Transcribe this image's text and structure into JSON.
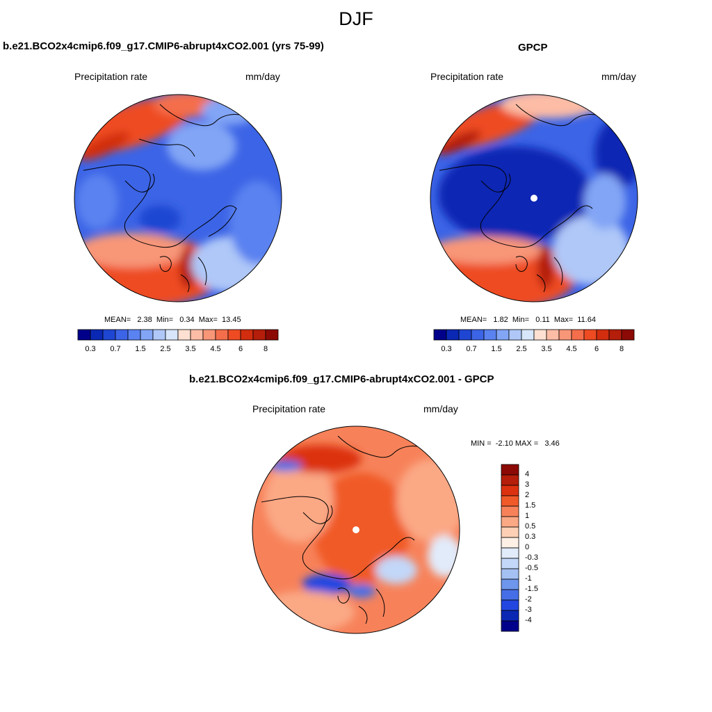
{
  "figure": {
    "title": "DJF",
    "panels": [
      {
        "id": "model",
        "title": "b.e21.BCO2x4cmip6.f09_g17.CMIP6-abrupt4xCO2.001 (yrs 75-99)",
        "left_label": "Precipitation rate",
        "right_label": "mm/day",
        "stats": "MEAN=   2.38  Min=   0.34  Max=  13.45",
        "mean": 2.38,
        "min": 0.34,
        "max": 13.45
      },
      {
        "id": "obs",
        "title": "GPCP",
        "left_label": "Precipitation rate",
        "right_label": "mm/day",
        "stats": "MEAN=   1.82  Min=   0.11  Max=  11.64",
        "mean": 1.82,
        "min": 0.11,
        "max": 11.64
      },
      {
        "id": "diff",
        "title": "b.e21.BCO2x4cmip6.f09_g17.CMIP6-abrupt4xCO2.001 - GPCP",
        "left_label": "Precipitation rate",
        "right_label": "mm/day",
        "stats": "MIN =  -2.10 MAX =   3.46",
        "min": -2.1,
        "max": 3.46
      }
    ],
    "precip_colorbar": {
      "colors": [
        "#00008b",
        "#0a28b4",
        "#1e46d2",
        "#3c64e6",
        "#5a82f0",
        "#82a5f5",
        "#afc8f8",
        "#d7e6fa",
        "#fde0d2",
        "#fcbca5",
        "#f89678",
        "#f46e4b",
        "#ee4b23",
        "#d22d0f",
        "#b41e0a",
        "#8c0a05"
      ],
      "tick_labels": [
        "0.3",
        "0.7",
        "1.5",
        "2.5",
        "3.5",
        "4.5",
        "6",
        "8"
      ]
    },
    "diff_colorbar": {
      "colors": [
        "#8c0a05",
        "#b41e0a",
        "#dc3210",
        "#f05a28",
        "#f7825a",
        "#fba885",
        "#fdd0b5",
        "#fff0e6",
        "#e1ebfa",
        "#c3d7f8",
        "#a5c0f3",
        "#6e96ec",
        "#466ee6",
        "#2346e0",
        "#0a28b4",
        "#00008b"
      ],
      "tick_labels": [
        "4",
        "3",
        "2",
        "1.5",
        "1",
        "0.5",
        "0.3",
        "0",
        "-0.3",
        "-0.5",
        "-1",
        "-1.5",
        "-2",
        "-3",
        "-4"
      ]
    }
  }
}
